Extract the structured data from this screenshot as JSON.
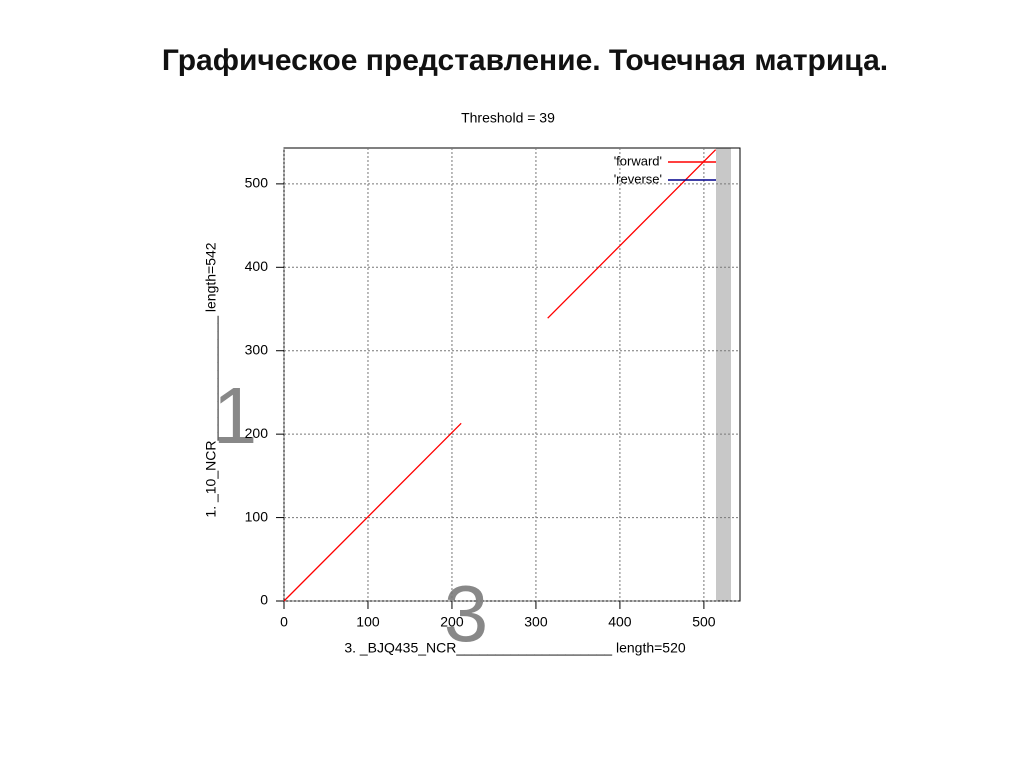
{
  "slide_title": "Графическое представление. Точечная матрица.",
  "chart_data": {
    "type": "line",
    "title": "Threshold = 39",
    "xlabel": "3. _BJQ435_NCR____________________ length=520",
    "ylabel": "1. _10_NCR________________ length=542",
    "xlim": [
      0,
      543
    ],
    "ylim": [
      0,
      543
    ],
    "xticks": [
      0,
      100,
      200,
      300,
      400,
      500
    ],
    "yticks": [
      0,
      100,
      200,
      300,
      400,
      500
    ],
    "grid": true,
    "legend": "upper right",
    "series": [
      {
        "name": "'forward'",
        "color": "#ff0000",
        "x": [
          0,
          211,
          null,
          314,
          514
        ],
        "values": [
          0,
          213,
          null,
          339,
          541
        ]
      },
      {
        "name": "'reverse'",
        "color": "#00008b",
        "x": [],
        "values": []
      }
    ],
    "annotations": [
      "1",
      "3"
    ]
  }
}
